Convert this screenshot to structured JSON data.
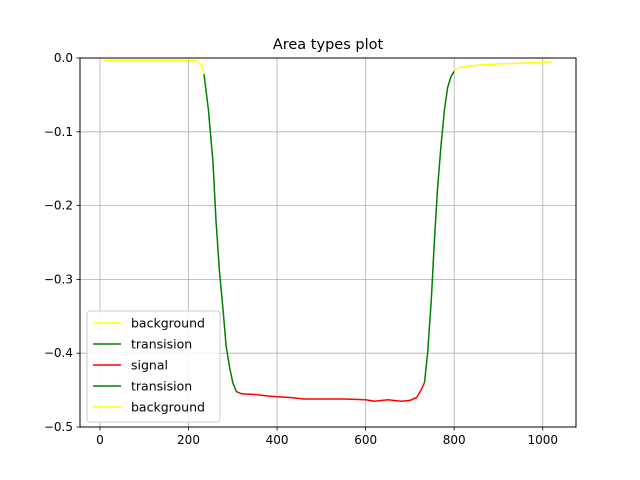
{
  "chart_data": {
    "type": "line",
    "title": "Area types plot",
    "xlabel": "",
    "ylabel": "",
    "xlim": [
      -45,
      1075
    ],
    "ylim": [
      -0.5,
      0.0
    ],
    "x_ticks": [
      0,
      200,
      400,
      600,
      800,
      1000
    ],
    "x_tick_labels": [
      "0",
      "200",
      "400",
      "600",
      "800",
      "1000"
    ],
    "y_ticks": [
      0.0,
      -0.1,
      -0.2,
      -0.3,
      -0.4,
      -0.5
    ],
    "y_tick_labels": [
      "0.0",
      "−0.1",
      "−0.2",
      "−0.3",
      "−0.4",
      "−0.5"
    ],
    "grid": true,
    "legend_position": "lower-left",
    "series": [
      {
        "name": "background",
        "color": "#ffff00",
        "x": [
          10,
          50,
          100,
          150,
          200,
          220,
          230,
          235
        ],
        "y": [
          -0.003,
          -0.003,
          -0.003,
          -0.003,
          -0.003,
          -0.004,
          -0.01,
          -0.022
        ]
      },
      {
        "name": "transision",
        "color": "#008000",
        "x": [
          235,
          245,
          255,
          262,
          270,
          278,
          285,
          293,
          300,
          308
        ],
        "y": [
          -0.022,
          -0.07,
          -0.14,
          -0.22,
          -0.29,
          -0.34,
          -0.39,
          -0.42,
          -0.44,
          -0.452
        ]
      },
      {
        "name": "signal",
        "color": "#ff0000",
        "x": [
          308,
          320,
          350,
          380,
          400,
          430,
          460,
          500,
          550,
          600,
          620,
          650,
          680,
          700,
          715,
          725,
          733
        ],
        "y": [
          -0.452,
          -0.455,
          -0.456,
          -0.458,
          -0.459,
          -0.46,
          -0.462,
          -0.462,
          -0.462,
          -0.463,
          -0.465,
          -0.463,
          -0.465,
          -0.464,
          -0.46,
          -0.45,
          -0.44
        ]
      },
      {
        "name": "transision",
        "color": "#008000",
        "x": [
          733,
          740,
          748,
          755,
          762,
          770,
          778,
          785,
          793,
          800
        ],
        "y": [
          -0.44,
          -0.4,
          -0.33,
          -0.25,
          -0.18,
          -0.12,
          -0.07,
          -0.04,
          -0.025,
          -0.018
        ]
      },
      {
        "name": "background",
        "color": "#ffff00",
        "x": [
          800,
          810,
          850,
          900,
          950,
          1000,
          1020
        ],
        "y": [
          -0.018,
          -0.013,
          -0.01,
          -0.008,
          -0.007,
          -0.006,
          -0.005
        ]
      }
    ]
  }
}
